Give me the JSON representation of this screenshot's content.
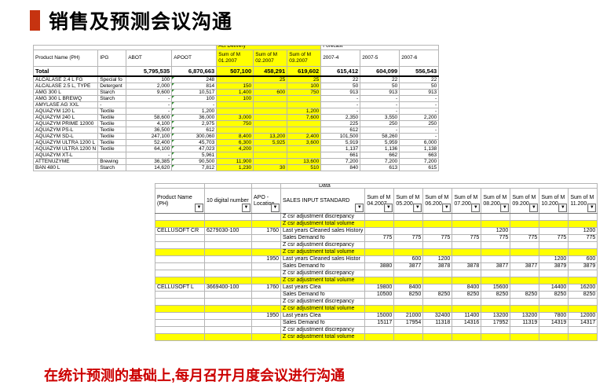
{
  "title": {
    "text": "销售及预测会议沟通"
  },
  "footer": {
    "text": "在统计预测的基础上,每月召开月度会议进行沟通"
  },
  "colors": {
    "accent_bar": "#c63310",
    "highlight": "#ffff00",
    "footer_text": "#cc0000",
    "error_indicator": "#2e8b2e"
  },
  "icons": {
    "filter_dropdown": "▼"
  },
  "table1": {
    "group_headers": [
      {
        "label": "Act Delivery"
      },
      {
        "label": "Forecast"
      }
    ],
    "columns": [
      "Product Name (PH)",
      "IPG",
      "ABOT",
      "APOOT",
      "Sum of  M 01.2007",
      "Sum of  M 02.2007",
      "Sum of  M 03.2007",
      "2007-4",
      "2007-5",
      "2007-6"
    ],
    "total": [
      "Total",
      "",
      "5,795,535",
      "6,870,663",
      "507,100",
      "458,291",
      "619,602",
      "615,412",
      "604,099",
      "556,543"
    ],
    "rows": [
      [
        "ALCALASE 2.4 L FG",
        "Special fo",
        "100",
        "248",
        "",
        "25",
        "25",
        "22",
        "22",
        "22"
      ],
      [
        "ALCALASE 2.5 L, TYPE",
        "Detergent",
        "2,000",
        "814",
        "150",
        "",
        "100",
        "50",
        "50",
        "50"
      ],
      [
        "AMG 300 L",
        "Starch",
        "9,600",
        "10,517",
        "1,400",
        "600",
        "750",
        "913",
        "913",
        "913"
      ],
      [
        "AMG 300 L BREWQ",
        "Starch",
        "-",
        "100",
        "100",
        "",
        "",
        "-",
        "-",
        "-"
      ],
      [
        "AMYLASE AG XXL",
        "-",
        "-",
        "-",
        "",
        "",
        "",
        "-",
        "-",
        "-"
      ],
      [
        "AQUAZYM 120 L",
        "Textile",
        "-",
        "1,200",
        "",
        "",
        "1,200",
        "-",
        "-",
        "-"
      ],
      [
        "AQUAZYM 240 L",
        "Textile",
        "58,600",
        "36,000",
        "3,000",
        "",
        "7,600",
        "2,350",
        "3,550",
        "2,200"
      ],
      [
        "AQUAZYM PRIME 12000",
        "Textile",
        "4,100",
        "2,975",
        "750",
        "",
        "",
        "225",
        "250",
        "250"
      ],
      [
        "AQUAZYM PS-L",
        "Textile",
        "36,500",
        "612",
        "",
        "",
        "",
        "612",
        "-",
        "-"
      ],
      [
        "AQUAZYM SD-L",
        "Textile",
        "247,100",
        "300,060",
        "8,400",
        "13,200",
        "2,400",
        "101,500",
        "58,260",
        "-"
      ],
      [
        "AQUAZYM ULTRA 1200 L",
        "Textile",
        "52,400",
        "45,703",
        "6,300",
        "5,925",
        "3,600",
        "5,919",
        "5,959",
        "6,000"
      ],
      [
        "AQUAZYM ULTRA 1200 N",
        "Textile",
        "64,100",
        "47,023",
        "4,200",
        "",
        "",
        "1,137",
        "1,136",
        "1,138"
      ],
      [
        "AQUAZYM XT-L",
        "",
        "-",
        "5,961",
        "",
        "",
        "",
        "661",
        "662",
        "663"
      ],
      [
        "ATTENUZYME",
        "Brewing",
        "36,385",
        "90,500",
        "11,900",
        "",
        "13,600",
        "7,200",
        "7,200",
        "7,200"
      ],
      [
        "BAN 480 L",
        "Starch",
        "14,620",
        "7,812",
        "1,230",
        "30",
        "510",
        "840",
        "613",
        "615"
      ]
    ]
  },
  "table2": {
    "data_label": "Data",
    "columns": [
      "Product Name (PH)",
      "10 digital number",
      "APO - Location",
      "SALES INPUT STANDARD",
      "Sum of  M 04.2007",
      "Sum of M 05.200",
      "Sum of M 06.200",
      "Sum of M 07.200",
      "Sum of M 08.200",
      "Sum of M 09.200",
      "Sum of M 10.200",
      "Sum of M 11.200"
    ],
    "rows": [
      {
        "style": "discrepancy",
        "cells": [
          "",
          "",
          "",
          "Z csr adjustment discrepancy",
          "",
          "",
          "",
          "",
          "",
          "",
          "",
          ""
        ]
      },
      {
        "style": "total",
        "cells": [
          "",
          "",
          "",
          "Z csr adjustment total volume",
          "",
          "",
          "",
          "",
          "",
          "",
          "",
          ""
        ]
      },
      {
        "style": "history",
        "cells": [
          "CELLUSOFT CR",
          "6279030-100",
          "1760",
          "Last years Cleaned sales History",
          "",
          "",
          "",
          "",
          "1200",
          "",
          "",
          "1200"
        ]
      },
      {
        "style": "demand",
        "cells": [
          "",
          "",
          "",
          "Sales Demand fo",
          "775",
          "775",
          "775",
          "775",
          "775",
          "775",
          "775",
          "775"
        ]
      },
      {
        "style": "discrepancy",
        "cells": [
          "",
          "",
          "",
          "Z csr adjustment discrepancy",
          "",
          "",
          "",
          "",
          "",
          "",
          "",
          ""
        ]
      },
      {
        "style": "total",
        "cells": [
          "",
          "",
          "",
          "Z csr adjustment total volume",
          "",
          "",
          "",
          "",
          "",
          "",
          "",
          ""
        ]
      },
      {
        "style": "history",
        "cells": [
          "",
          "",
          "1950",
          "Last years Cleaned sales Histor",
          "",
          "600",
          "1200",
          "",
          "",
          "",
          "1200",
          "600"
        ]
      },
      {
        "style": "demand",
        "cells": [
          "",
          "",
          "",
          "Sales Demand fo",
          "3880",
          "3877",
          "3878",
          "3878",
          "3877",
          "3877",
          "3879",
          "3879"
        ]
      },
      {
        "style": "discrepancy",
        "cells": [
          "",
          "",
          "",
          "Z csr adjustment discrepancy",
          "",
          "",
          "",
          "",
          "",
          "",
          "",
          ""
        ]
      },
      {
        "style": "total",
        "cells": [
          "",
          "",
          "",
          "Z csr adjustment total volume",
          "",
          "",
          "",
          "",
          "",
          "",
          "",
          ""
        ]
      },
      {
        "style": "history",
        "cells": [
          "CELLUSOFT L",
          "3669400-100",
          "1760",
          "Last years Clea",
          "19800",
          "8400",
          "",
          "8400",
          "15600",
          "",
          "14400",
          "16200"
        ]
      },
      {
        "style": "demand",
        "cells": [
          "",
          "",
          "",
          "Sales Demand fo",
          "10500",
          "8250",
          "8250",
          "8250",
          "8250",
          "8250",
          "8250",
          "8250"
        ]
      },
      {
        "style": "discrepancy",
        "cells": [
          "",
          "",
          "",
          "Z csr adjustment discrepancy",
          "",
          "",
          "",
          "",
          "",
          "",
          "",
          ""
        ]
      },
      {
        "style": "total",
        "cells": [
          "",
          "",
          "",
          "Z csr adjustment total volume",
          "",
          "",
          "",
          "",
          "",
          "",
          "",
          ""
        ]
      },
      {
        "style": "history",
        "cells": [
          "",
          "",
          "1950",
          "Last years Clea",
          "15000",
          "21000",
          "32400",
          "11400",
          "13200",
          "13200",
          "7800",
          "12000"
        ]
      },
      {
        "style": "demand",
        "cells": [
          "",
          "",
          "",
          "Sales Demand fo",
          "15117",
          "17954",
          "11318",
          "14316",
          "17952",
          "11319",
          "14319",
          "14317"
        ]
      },
      {
        "style": "discrepancy",
        "cells": [
          "",
          "",
          "",
          "Z csr adjustment discrepancy",
          "",
          "",
          "",
          "",
          "",
          "",
          "",
          ""
        ]
      },
      {
        "style": "total",
        "cells": [
          "",
          "",
          "",
          "Z csr adjustment total volume",
          "",
          "",
          "",
          "",
          "",
          "",
          "",
          ""
        ]
      }
    ]
  }
}
